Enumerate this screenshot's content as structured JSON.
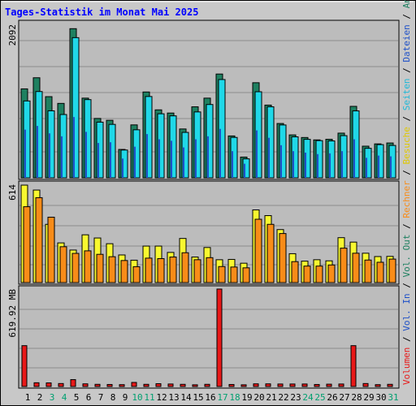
{
  "chart_data": {
    "type": "bar",
    "title": "Tages-Statistik im Monat Mai 2025",
    "days": [
      "1",
      "2",
      "3",
      "4",
      "5",
      "6",
      "7",
      "8",
      "9",
      "10",
      "11",
      "12",
      "13",
      "14",
      "15",
      "16",
      "17",
      "18",
      "19",
      "20",
      "21",
      "22",
      "23",
      "24",
      "25",
      "26",
      "27",
      "28",
      "29",
      "30",
      "31"
    ],
    "weekend_days": [
      "3",
      "4",
      "10",
      "11",
      "17",
      "18",
      "24",
      "25",
      "31"
    ],
    "right_axis_label": {
      "volumen": "Volumen",
      "sep1": " / ",
      "vol_in": "Vol. In",
      "sep2": " / ",
      "vol_out": "Vol. Out",
      "sep3": " / ",
      "rechner": "Rechner",
      "sep4": " / ",
      "besuche": "Besuche",
      "sep5": " / ",
      "seiten": "Seiten",
      "sep6": " / ",
      "dateien": "Dateien",
      "sep7": " / ",
      "anfragen": "Anfragen"
    },
    "colors": {
      "anfragen": "#1e8060",
      "dateien": "#20d8e8",
      "seiten": "#1e50c8",
      "besuche": "#f8f830",
      "rechner": "#f88c18",
      "volumen": "#e81818",
      "weekday_label": "#000000",
      "weekend_label": "#00a070",
      "title": "#0000ff",
      "plot_bg": "#bcbcbc"
    },
    "panels": [
      {
        "id": "requests",
        "ymax_label": "2092",
        "ymax": 2092,
        "series": [
          {
            "name": "Anfragen",
            "values": [
              1200,
              1350,
              1095,
              1004,
              2012,
              1075,
              801,
              776,
              383,
              714,
              1158,
              917,
              874,
              659,
              958,
              1075,
              1400,
              565,
              280,
              1283,
              981,
              733,
              579,
              544,
              512,
              520,
              603,
              964,
              427,
              458,
              470
            ]
          },
          {
            "name": "Dateien",
            "values": [
              1037,
              1164,
              904,
              854,
              1891,
              1055,
              751,
              721,
              375,
              648,
              1097,
              864,
              836,
              613,
              889,
              989,
              1326,
              545,
              256,
              1161,
              958,
              713,
              553,
              519,
              502,
              498,
              569,
              903,
              398,
              448,
              437
            ]
          },
          {
            "name": "Seiten",
            "values": [
              650,
              700,
              600,
              560,
              820,
              620,
              470,
              480,
              260,
              420,
              590,
              520,
              500,
              410,
              520,
              560,
              660,
              360,
              190,
              640,
              540,
              440,
              360,
              340,
              320,
              330,
              360,
              520,
              270,
              300,
              290
            ]
          }
        ]
      },
      {
        "id": "visits",
        "ymax_label": "614",
        "ymax": 614,
        "series": [
          {
            "name": "Besuche",
            "values": [
              614,
              583,
              367,
              250,
              205,
              301,
              281,
              245,
              174,
              141,
              230,
              230,
              190,
              278,
              161,
              221,
              144,
              146,
              122,
              458,
              422,
              334,
              182,
              135,
              144,
              137,
              283,
              255,
              185,
              164,
              165
            ]
          },
          {
            "name": "Rechner",
            "values": [
              478,
              535,
              412,
              226,
              184,
              200,
              178,
              163,
              139,
              100,
              154,
              151,
              161,
              188,
              144,
              157,
              101,
              98,
              93,
              399,
              367,
              309,
              132,
              104,
              104,
              111,
              217,
              185,
              142,
              128,
              148
            ]
          }
        ]
      },
      {
        "id": "volume",
        "ymax_label": "619.92 MB",
        "ymax": 619.92,
        "series": [
          {
            "name": "Volumen",
            "values": [
              260,
              24,
              23,
              19,
              44,
              17,
              14,
              13,
              12,
              26,
              14,
              18,
              16,
              14,
              11,
              14,
              620,
              13,
              11,
              17,
              17,
              16,
              16,
              16,
              13,
              15,
              16,
              260,
              19,
              12,
              14
            ]
          }
        ]
      }
    ]
  }
}
